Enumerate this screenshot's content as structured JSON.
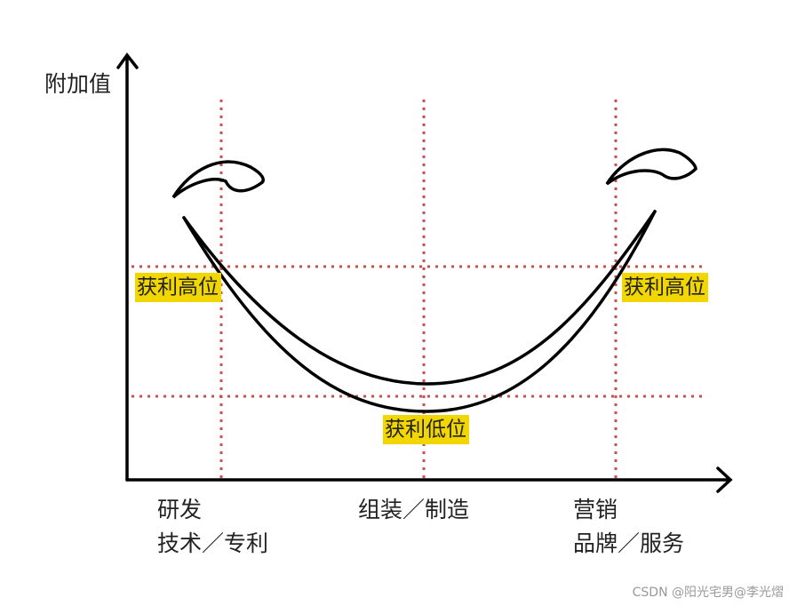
{
  "axis": {
    "y_label": "附加值"
  },
  "highlights": {
    "left": "获利高位",
    "right": "获利高位",
    "bottom": "获利低位"
  },
  "zones": [
    {
      "lines": [
        "研发",
        "技术／专利"
      ]
    },
    {
      "lines": [
        "组装／制造"
      ]
    },
    {
      "lines": [
        "营销",
        "品牌／服务"
      ]
    }
  ],
  "watermark": "CSDN @阳光宅男@李光熠"
}
